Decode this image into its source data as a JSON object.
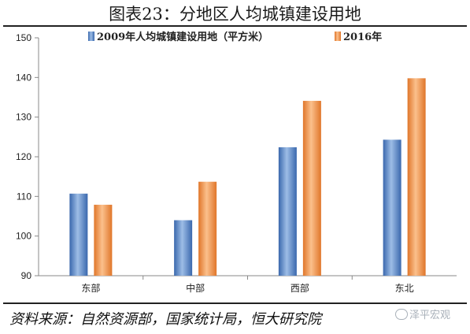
{
  "title": "图表23：分地区人均城镇建设用地",
  "source": "资料来源：自然资源部，国家统计局，恒大研究院",
  "watermark": "泽平宏观",
  "colors": {
    "series1": "#4a7cc0",
    "series2": "#f0883a",
    "axis": "#888888",
    "text": "#222222"
  },
  "chart_data": {
    "type": "bar",
    "title": "图表23：分地区人均城镇建设用地",
    "categories": [
      "东部",
      "中部",
      "西部",
      "东北"
    ],
    "series": [
      {
        "name": "2009年人均城镇建设用地（平方米）",
        "values": [
          110.7,
          104.0,
          122.4,
          124.3
        ]
      },
      {
        "name": "2016年",
        "values": [
          107.9,
          113.7,
          134.1,
          139.8
        ]
      }
    ],
    "ylim": [
      90,
      150
    ],
    "yticks": [
      90,
      100,
      110,
      120,
      130,
      140,
      150
    ],
    "grid": false,
    "legend": "top"
  }
}
